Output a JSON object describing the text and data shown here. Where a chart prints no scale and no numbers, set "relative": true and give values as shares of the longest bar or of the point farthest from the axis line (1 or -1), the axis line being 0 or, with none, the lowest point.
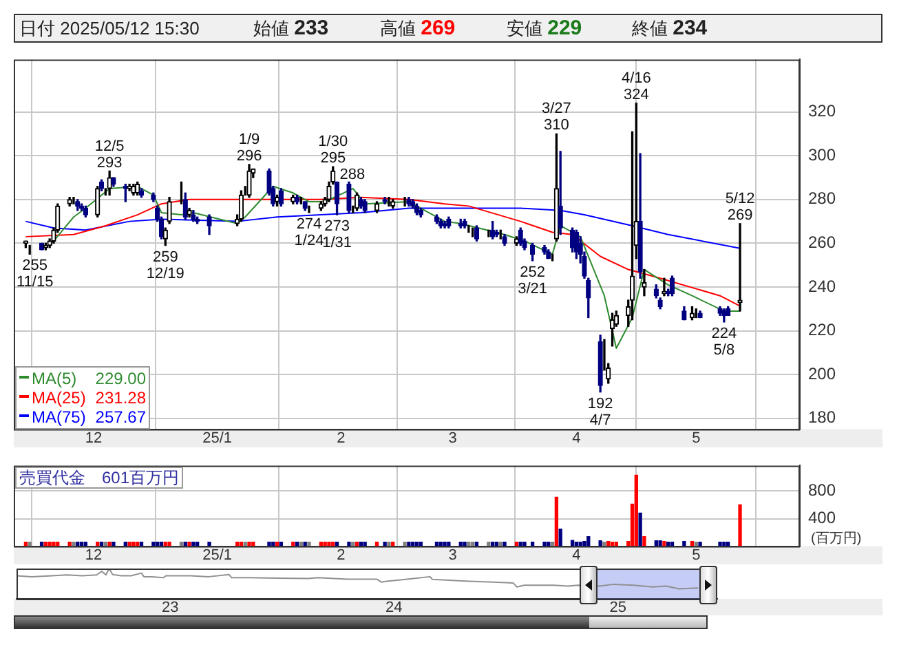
{
  "chart_data": [
    {
      "type": "candlestick",
      "title": "日付 2025/05/12 15:30",
      "annotations": [
        "始値 233",
        "高値 269",
        "安値 229",
        "終値 234",
        {
          "text": "255\n11/15",
          "x": "2024-11-15",
          "y": 255
        },
        {
          "text": "12/5\n293",
          "x": "2024-12-05",
          "y": 293
        },
        {
          "text": "259\n12/19",
          "x": "2024-12-19",
          "y": 259
        },
        {
          "text": "1/9\n296",
          "x": "2025-01-09",
          "y": 296
        },
        {
          "text": "274\n1/24",
          "x": "2025-01-24",
          "y": 274
        },
        {
          "text": "1/30\n295",
          "x": "2025-01-30",
          "y": 295
        },
        {
          "text": "288",
          "x": "2025-01-31",
          "y": 288
        },
        {
          "text": "273\n1/31",
          "x": "2025-01-31",
          "y": 273
        },
        {
          "text": "252\n3/21",
          "x": "2025-03-21",
          "y": 252
        },
        {
          "text": "3/27\n310",
          "x": "2025-03-27",
          "y": 310
        },
        {
          "text": "192\n4/7",
          "x": "2025-04-07",
          "y": 192
        },
        {
          "text": "4/16\n324",
          "x": "2025-04-16",
          "y": 324
        },
        {
          "text": "224\n5/8",
          "x": "2025-05-08",
          "y": 224
        },
        {
          "text": "5/12\n269",
          "x": "2025-05-12",
          "y": 269
        }
      ],
      "x": [
        "2024-11-14",
        "2024-11-15",
        "2024-11-18",
        "2024-11-19",
        "2024-11-20",
        "2024-11-21",
        "2024-11-22",
        "2024-11-25",
        "2024-11-26",
        "2024-11-27",
        "2024-11-28",
        "2024-11-29",
        "2024-12-02",
        "2024-12-03",
        "2024-12-04",
        "2024-12-05",
        "2024-12-06",
        "2024-12-09",
        "2024-12-10",
        "2024-12-11",
        "2024-12-12",
        "2024-12-13",
        "2024-12-16",
        "2024-12-17",
        "2024-12-18",
        "2024-12-19",
        "2024-12-20",
        "2024-12-23",
        "2024-12-24",
        "2024-12-25",
        "2024-12-26",
        "2024-12-27",
        "2024-12-30",
        "2025-01-06",
        "2025-01-07",
        "2025-01-08",
        "2025-01-09",
        "2025-01-10",
        "2025-01-14",
        "2025-01-15",
        "2025-01-16",
        "2025-01-17",
        "2025-01-20",
        "2025-01-21",
        "2025-01-22",
        "2025-01-23",
        "2025-01-24",
        "2025-01-27",
        "2025-01-28",
        "2025-01-29",
        "2025-01-30",
        "2025-01-31",
        "2025-02-03",
        "2025-02-04",
        "2025-02-05",
        "2025-02-06",
        "2025-02-07",
        "2025-02-10",
        "2025-02-12",
        "2025-02-13",
        "2025-02-14",
        "2025-02-17",
        "2025-02-18",
        "2025-02-19",
        "2025-02-20",
        "2025-02-21",
        "2025-02-25",
        "2025-02-26",
        "2025-02-27",
        "2025-02-28",
        "2025-03-03",
        "2025-03-04",
        "2025-03-05",
        "2025-03-06",
        "2025-03-07",
        "2025-03-10",
        "2025-03-11",
        "2025-03-12",
        "2025-03-13",
        "2025-03-14",
        "2025-03-17",
        "2025-03-18",
        "2025-03-19",
        "2025-03-21",
        "2025-03-24",
        "2025-03-25",
        "2025-03-26",
        "2025-03-27",
        "2025-03-28",
        "2025-03-31",
        "2025-04-01",
        "2025-04-02",
        "2025-04-03",
        "2025-04-04",
        "2025-04-07",
        "2025-04-08",
        "2025-04-09",
        "2025-04-10",
        "2025-04-11",
        "2025-04-14",
        "2025-04-15",
        "2025-04-16",
        "2025-04-17",
        "2025-04-18",
        "2025-04-21",
        "2025-04-22",
        "2025-04-23",
        "2025-04-24",
        "2025-04-25",
        "2025-04-28",
        "2025-04-30",
        "2025-05-01",
        "2025-05-02",
        "2025-05-07",
        "2025-05-08",
        "2025-05-09",
        "2025-05-12"
      ],
      "ohlc": [
        [
          260,
          261,
          258,
          261
        ],
        [
          259,
          259,
          255,
          259
        ],
        [
          260,
          260,
          257,
          257
        ],
        [
          258,
          260,
          257,
          259
        ],
        [
          259,
          262,
          258,
          261
        ],
        [
          261,
          267,
          260,
          266
        ],
        [
          266,
          278,
          265,
          277
        ],
        [
          278,
          281,
          277,
          280
        ],
        [
          279,
          281,
          278,
          279
        ],
        [
          279,
          280,
          275,
          277
        ],
        [
          277,
          278,
          275,
          276
        ],
        [
          276,
          277,
          272,
          273
        ],
        [
          273,
          286,
          272,
          285
        ],
        [
          288,
          289,
          284,
          285
        ],
        [
          284,
          285,
          282,
          284
        ],
        [
          285,
          293,
          282,
          290
        ],
        [
          290,
          290,
          286,
          287
        ],
        [
          286,
          287,
          279,
          285
        ],
        [
          285,
          287,
          284,
          286
        ],
        [
          283,
          287,
          282,
          286
        ],
        [
          283,
          288,
          282,
          287
        ],
        [
          284,
          285,
          281,
          282
        ],
        [
          282,
          283,
          279,
          280
        ],
        [
          276,
          277,
          270,
          271
        ],
        [
          271,
          272,
          262,
          263
        ],
        [
          262,
          267,
          259,
          266
        ],
        [
          270,
          281,
          269,
          279
        ],
        [
          280,
          288,
          278,
          280
        ],
        [
          280,
          283,
          271,
          272
        ],
        [
          273,
          276,
          272,
          275
        ],
        [
          273,
          275,
          270,
          271
        ],
        [
          271,
          272,
          269,
          270
        ],
        [
          272,
          273,
          264,
          268
        ],
        [
          269,
          273,
          268,
          271
        ],
        [
          271,
          284,
          270,
          282
        ],
        [
          283,
          286,
          282,
          283
        ],
        [
          282,
          296,
          281,
          293
        ],
        [
          292,
          294,
          290,
          294
        ],
        [
          293,
          294,
          282,
          283
        ],
        [
          285,
          286,
          277,
          278
        ],
        [
          279,
          282,
          277,
          281
        ],
        [
          284,
          285,
          277,
          278
        ],
        [
          279,
          282,
          278,
          281
        ],
        [
          281,
          282,
          278,
          279
        ],
        [
          280,
          281,
          278,
          280
        ],
        [
          279,
          279,
          275,
          276
        ],
        [
          276,
          277,
          274,
          276
        ],
        [
          276,
          279,
          275,
          278
        ],
        [
          278,
          281,
          277,
          280
        ],
        [
          280,
          288,
          279,
          286
        ],
        [
          288,
          295,
          287,
          293
        ],
        [
          288,
          288,
          273,
          278
        ],
        [
          287,
          288,
          274,
          275
        ],
        [
          275,
          277,
          274,
          275
        ],
        [
          276,
          283,
          275,
          282
        ],
        [
          280,
          281,
          276,
          277
        ],
        [
          279,
          280,
          274,
          275
        ],
        [
          275,
          279,
          274,
          278
        ],
        [
          280,
          281,
          278,
          279
        ],
        [
          279,
          281,
          277,
          279
        ],
        [
          277,
          280,
          276,
          279
        ],
        [
          279,
          281,
          277,
          279
        ],
        [
          280,
          281,
          277,
          278
        ],
        [
          279,
          280,
          276,
          277
        ],
        [
          277,
          278,
          273,
          274
        ],
        [
          275,
          276,
          272,
          273
        ],
        [
          272,
          273,
          269,
          270
        ],
        [
          270,
          271,
          267,
          268
        ],
        [
          269,
          270,
          267,
          268
        ],
        [
          271,
          272,
          267,
          268
        ],
        [
          269,
          271,
          267,
          268
        ],
        [
          270,
          271,
          267,
          268
        ],
        [
          267,
          268,
          265,
          267
        ],
        [
          265,
          267,
          263,
          265
        ],
        [
          267,
          268,
          261,
          262
        ],
        [
          265,
          266,
          263,
          265
        ],
        [
          266,
          270,
          262,
          263
        ],
        [
          265,
          266,
          263,
          264
        ],
        [
          264,
          266,
          262,
          264
        ],
        [
          263,
          264,
          259,
          260
        ],
        [
          260,
          263,
          259,
          262
        ],
        [
          266,
          267,
          259,
          260
        ],
        [
          261,
          262,
          257,
          258
        ],
        [
          259,
          260,
          252,
          255
        ],
        [
          258,
          259,
          255,
          256
        ],
        [
          256,
          257,
          253,
          253
        ],
        [
          253,
          255,
          252,
          253
        ],
        [
          262,
          310,
          261,
          285
        ],
        [
          277,
          302,
          264,
          267
        ],
        [
          266,
          267,
          256,
          258
        ],
        [
          265,
          266,
          253,
          256
        ],
        [
          260,
          263,
          251,
          255
        ],
        [
          254,
          256,
          244,
          245
        ],
        [
          243,
          244,
          226,
          235
        ],
        [
          215,
          218,
          192,
          195
        ],
        [
          210,
          216,
          202,
          210
        ],
        [
          198,
          205,
          196,
          203
        ],
        [
          221,
          228,
          213,
          225
        ],
        [
          223,
          229,
          222,
          227
        ],
        [
          227,
          234,
          222,
          231
        ],
        [
          234,
          311,
          225,
          245
        ],
        [
          259,
          324,
          253,
          270
        ],
        [
          270,
          301,
          244,
          247
        ],
        [
          240,
          248,
          236,
          242
        ],
        [
          239,
          241,
          235,
          236
        ],
        [
          234,
          235,
          230,
          231
        ],
        [
          237,
          244,
          236,
          238
        ],
        [
          238,
          239,
          236,
          237
        ],
        [
          244,
          245,
          236,
          237
        ],
        [
          229,
          231,
          225,
          225
        ],
        [
          226,
          231,
          225,
          228
        ],
        [
          228,
          230,
          226,
          228
        ],
        [
          228,
          229,
          226,
          226
        ],
        [
          230,
          231,
          227,
          228
        ],
        [
          229,
          230,
          224,
          227
        ],
        [
          230,
          231,
          227,
          227
        ],
        [
          233,
          269,
          229,
          234
        ]
      ],
      "series": [
        {
          "type": "line",
          "name": "MA(5) 229.00",
          "color": "#2e8b2e",
          "x": [
            "2024-11-20",
            "2024-11-21",
            "2024-11-26",
            "2024-11-29",
            "2024-12-05",
            "2024-12-12",
            "2024-12-16",
            "2024-12-18",
            "2024-12-23",
            "2024-12-26",
            "2025-01-06",
            "2025-01-08",
            "2025-01-15",
            "2025-01-20",
            "2025-01-24",
            "2025-01-28",
            "2025-02-04",
            "2025-02-07",
            "2025-02-18",
            "2025-02-21",
            "2025-02-27",
            "2025-03-03",
            "2025-03-14",
            "2025-03-19",
            "2025-03-26",
            "2025-03-28",
            "2025-04-02",
            "2025-04-08",
            "2025-04-11",
            "2025-04-15",
            "2025-04-18",
            "2025-04-24",
            "2025-04-30",
            "2025-05-08",
            "2025-05-12"
          ],
          "values": [
            260,
            261,
            272,
            276,
            285,
            286,
            282,
            274,
            273,
            274,
            269,
            272,
            286,
            283,
            279,
            279,
            285,
            278,
            279,
            276,
            270,
            269,
            264,
            261,
            255,
            268,
            263,
            236,
            212,
            226,
            248,
            241,
            236,
            229,
            229
          ]
        },
        {
          "type": "line",
          "name": "MA(25) 231.28",
          "color": "#ff0000",
          "x": [
            "2024-11-14",
            "2024-11-26",
            "2024-12-04",
            "2024-12-12",
            "2024-12-18",
            "2024-12-25",
            "2025-01-10",
            "2025-01-27",
            "2025-02-06",
            "2025-02-18",
            "2025-02-27",
            "2025-03-05",
            "2025-03-18",
            "2025-03-26",
            "2025-03-31",
            "2025-04-07",
            "2025-04-14",
            "2025-04-22",
            "2025-05-07",
            "2025-05-12"
          ],
          "values": [
            263,
            264,
            268,
            273,
            278,
            280,
            280,
            280,
            281,
            280,
            278,
            277,
            270,
            265,
            264,
            254,
            248,
            244,
            236,
            231.28
          ]
        },
        {
          "type": "line",
          "name": "MA(75) 257.67",
          "color": "#0000ff",
          "x": [
            "2024-11-14",
            "2024-11-21",
            "2024-11-29",
            "2024-12-10",
            "2024-12-18",
            "2025-01-06",
            "2025-01-16",
            "2025-01-27",
            "2025-02-06",
            "2025-02-18",
            "2025-02-27",
            "2025-03-18",
            "2025-03-28",
            "2025-04-03",
            "2025-04-15",
            "2025-04-24",
            "2025-05-12"
          ],
          "values": [
            270,
            267,
            266,
            270,
            271,
            270,
            272,
            273,
            274,
            276,
            276,
            276,
            275,
            273,
            268,
            264,
            257.67
          ]
        }
      ],
      "ylim": [
        175,
        344
      ],
      "yticks": [
        180,
        200,
        220,
        240,
        260,
        280,
        300,
        320
      ],
      "xticks": [
        {
          "value": "2024-12-01",
          "label": "12"
        },
        {
          "value": "2025-01-01",
          "label": "25/1"
        },
        {
          "value": "2025-02-01",
          "label": "2"
        },
        {
          "value": "2025-03-01",
          "label": "3"
        },
        {
          "value": "2025-04-01",
          "label": "4"
        },
        {
          "value": "2025-05-01",
          "label": "5"
        }
      ],
      "xlim": [
        "2024-11-11",
        "2025-05-27"
      ],
      "grid": true,
      "legend": "bottom left"
    },
    {
      "type": "bar",
      "title": "売買代金　601百万円",
      "ylabel": "(百万円)",
      "x": [
        "2024-11-14",
        "2024-11-15",
        "2024-11-18",
        "2024-11-19",
        "2024-11-20",
        "2024-11-21",
        "2024-11-22",
        "2024-11-25",
        "2024-11-26",
        "2024-11-27",
        "2024-11-28",
        "2024-11-29",
        "2024-12-02",
        "2024-12-03",
        "2024-12-04",
        "2024-12-05",
        "2024-12-06",
        "2024-12-09",
        "2024-12-10",
        "2024-12-11",
        "2024-12-12",
        "2024-12-13",
        "2024-12-16",
        "2024-12-17",
        "2024-12-18",
        "2024-12-19",
        "2024-12-20",
        "2024-12-23",
        "2024-12-24",
        "2024-12-25",
        "2024-12-26",
        "2024-12-27",
        "2024-12-30",
        "2025-01-06",
        "2025-01-07",
        "2025-01-08",
        "2025-01-09",
        "2025-01-10",
        "2025-01-14",
        "2025-01-15",
        "2025-01-16",
        "2025-01-17",
        "2025-01-20",
        "2025-01-21",
        "2025-01-22",
        "2025-01-23",
        "2025-01-24",
        "2025-01-27",
        "2025-01-28",
        "2025-01-29",
        "2025-01-30",
        "2025-01-31",
        "2025-02-03",
        "2025-02-04",
        "2025-02-05",
        "2025-02-06",
        "2025-02-07",
        "2025-02-10",
        "2025-02-12",
        "2025-02-13",
        "2025-02-14",
        "2025-02-17",
        "2025-02-18",
        "2025-02-19",
        "2025-02-20",
        "2025-02-21",
        "2025-02-25",
        "2025-02-26",
        "2025-02-27",
        "2025-02-28",
        "2025-03-03",
        "2025-03-04",
        "2025-03-05",
        "2025-03-06",
        "2025-03-07",
        "2025-03-10",
        "2025-03-11",
        "2025-03-12",
        "2025-03-13",
        "2025-03-14",
        "2025-03-17",
        "2025-03-18",
        "2025-03-19",
        "2025-03-21",
        "2025-03-24",
        "2025-03-25",
        "2025-03-26",
        "2025-03-27",
        "2025-03-28",
        "2025-03-31",
        "2025-04-01",
        "2025-04-02",
        "2025-04-03",
        "2025-04-04",
        "2025-04-07",
        "2025-04-08",
        "2025-04-09",
        "2025-04-10",
        "2025-04-11",
        "2025-04-14",
        "2025-04-15",
        "2025-04-16",
        "2025-04-17",
        "2025-04-18",
        "2025-04-21",
        "2025-04-22",
        "2025-04-23",
        "2025-04-24",
        "2025-04-25",
        "2025-04-28",
        "2025-04-30",
        "2025-05-01",
        "2025-05-02",
        "2025-05-07",
        "2025-05-08",
        "2025-05-09",
        "2025-05-12"
      ],
      "values": [
        60,
        60,
        60,
        60,
        60,
        60,
        60,
        60,
        60,
        60,
        60,
        60,
        60,
        60,
        60,
        60,
        60,
        60,
        60,
        60,
        60,
        60,
        60,
        60,
        60,
        60,
        60,
        60,
        60,
        60,
        60,
        60,
        60,
        60,
        60,
        60,
        60,
        60,
        60,
        60,
        60,
        60,
        60,
        60,
        60,
        60,
        60,
        60,
        60,
        60,
        60,
        60,
        60,
        60,
        60,
        60,
        60,
        60,
        60,
        60,
        60,
        60,
        60,
        60,
        60,
        60,
        60,
        60,
        60,
        60,
        60,
        60,
        60,
        60,
        60,
        60,
        60,
        60,
        60,
        60,
        60,
        60,
        60,
        60,
        60,
        60,
        60,
        710,
        250,
        85,
        60,
        60,
        70,
        140,
        80,
        60,
        70,
        60,
        60,
        70,
        610,
        1030,
        480,
        140,
        80,
        80,
        70,
        60,
        60,
        70,
        70,
        60,
        60,
        60,
        60,
        60,
        601
      ],
      "colors": [
        "#ff0000",
        "#808080",
        "#000080",
        "#ff0000",
        "#ff0000",
        "#ff0000",
        "#ff0000",
        "#ff0000",
        "#808080",
        "#000080",
        "#000080",
        "#000080",
        "#ff0000",
        "#000080",
        "#808080",
        "#ff0000",
        "#000080",
        "#000080",
        "#ff0000",
        "#ff0000",
        "#ff0000",
        "#000080",
        "#000080",
        "#000080",
        "#000080",
        "#ff0000",
        "#ff0000",
        "#808080",
        "#000080",
        "#ff0000",
        "#000080",
        "#000080",
        "#000080",
        "#ff0000",
        "#ff0000",
        "#808080",
        "#ff0000",
        "#ff0000",
        "#000080",
        "#000080",
        "#ff0000",
        "#000080",
        "#ff0000",
        "#000080",
        "#808080",
        "#000080",
        "#808080",
        "#ff0000",
        "#ff0000",
        "#ff0000",
        "#ff0000",
        "#000080",
        "#000080",
        "#808080",
        "#ff0000",
        "#000080",
        "#000080",
        "#ff0000",
        "#000080",
        "#808080",
        "#ff0000",
        "#808080",
        "#000080",
        "#000080",
        "#000080",
        "#000080",
        "#000080",
        "#000080",
        "#000080",
        "#000080",
        "#000080",
        "#000080",
        "#808080",
        "#808080",
        "#000080",
        "#808080",
        "#000080",
        "#000080",
        "#808080",
        "#000080",
        "#ff0000",
        "#000080",
        "#000080",
        "#000080",
        "#000080",
        "#000080",
        "#808080",
        "#ff0000",
        "#000080",
        "#000080",
        "#000080",
        "#000080",
        "#000080",
        "#000080",
        "#000080",
        "#808080",
        "#ff0000",
        "#ff0000",
        "#ff0000",
        "#ff0000",
        "#ff0000",
        "#ff0000",
        "#000080",
        "#ff0000",
        "#000080",
        "#000080",
        "#ff0000",
        "#000080",
        "#000080",
        "#000080",
        "#ff0000",
        "#808080",
        "#000080",
        "#000080",
        "#000080",
        "#000080",
        "#ff0000"
      ],
      "ylim": [
        0,
        1170
      ],
      "yticks": [
        400,
        800
      ],
      "xlim": [
        "2024-11-11",
        "2025-05-27"
      ],
      "xticks": [
        {
          "value": "2024-12-01",
          "label": "12"
        },
        {
          "value": "2025-01-01",
          "label": "25/1"
        },
        {
          "value": "2025-02-01",
          "label": "2"
        },
        {
          "value": "2025-03-01",
          "label": "3"
        },
        {
          "value": "2025-04-01",
          "label": "4"
        },
        {
          "value": "2025-05-01",
          "label": "5"
        }
      ],
      "grid": true
    },
    {
      "type": "line",
      "relative": true,
      "color": "#909090",
      "x": [
        "2022-04-25",
        "2022-05-20",
        "2022-06-22",
        "2022-07-16",
        "2022-08-10",
        "2022-09-03",
        "2022-09-11",
        "2022-09-18",
        "2022-09-23",
        "2022-09-29",
        "2022-10-13",
        "2022-10-29",
        "2022-11-15",
        "2022-11-19",
        "2022-12-01",
        "2022-12-21",
        "2022-12-25",
        "2023-02-03",
        "2023-03-05",
        "2023-04-07",
        "2023-04-11",
        "2023-05-09",
        "2023-06-26",
        "2023-08-14",
        "2023-08-30",
        "2023-10-17",
        "2023-12-04",
        "2023-12-12",
        "2023-12-20",
        "2024-01-20",
        "2024-02-29",
        "2024-03-04",
        "2024-05-03",
        "2024-06-12",
        "2024-07-14",
        "2024-07-20",
        "2024-08-01",
        "2024-09-18",
        "2024-10-11",
        "2024-10-28",
        "2024-12-02",
        "2024-12-25",
        "2025-01-26",
        "2025-02-27",
        "2025-03-21",
        "2025-04-10",
        "2025-05-12"
      ],
      "values": [
        0.76,
        0.73,
        0.76,
        0.79,
        0.76,
        0.79,
        0.91,
        0.79,
        1,
        0.8,
        0.76,
        0.76,
        0.85,
        0.73,
        0.73,
        0.7,
        0.76,
        0.76,
        0.73,
        0.8,
        0.7,
        0.7,
        0.68,
        0.67,
        0.7,
        0.65,
        0.65,
        0.55,
        0.58,
        0.64,
        0.73,
        0.64,
        0.58,
        0.55,
        0.52,
        0.39,
        0.45,
        0.45,
        0.42,
        0.45,
        0.42,
        0.48,
        0.45,
        0.39,
        0.42,
        0.33,
        0.36
      ],
      "xlim": [
        "2022-04-25",
        "2025-06-12"
      ],
      "bands": [
        {
          "axis": "x",
          "from": "2024-11-12",
          "to": "2025-05-27",
          "color": "#5a6ee6"
        }
      ],
      "xticks": [
        {
          "value": "2023-01-01",
          "label": "23"
        },
        {
          "value": "2024-01-01",
          "label": "24"
        },
        {
          "value": "2025-01-01",
          "label": "25"
        }
      ]
    }
  ]
}
